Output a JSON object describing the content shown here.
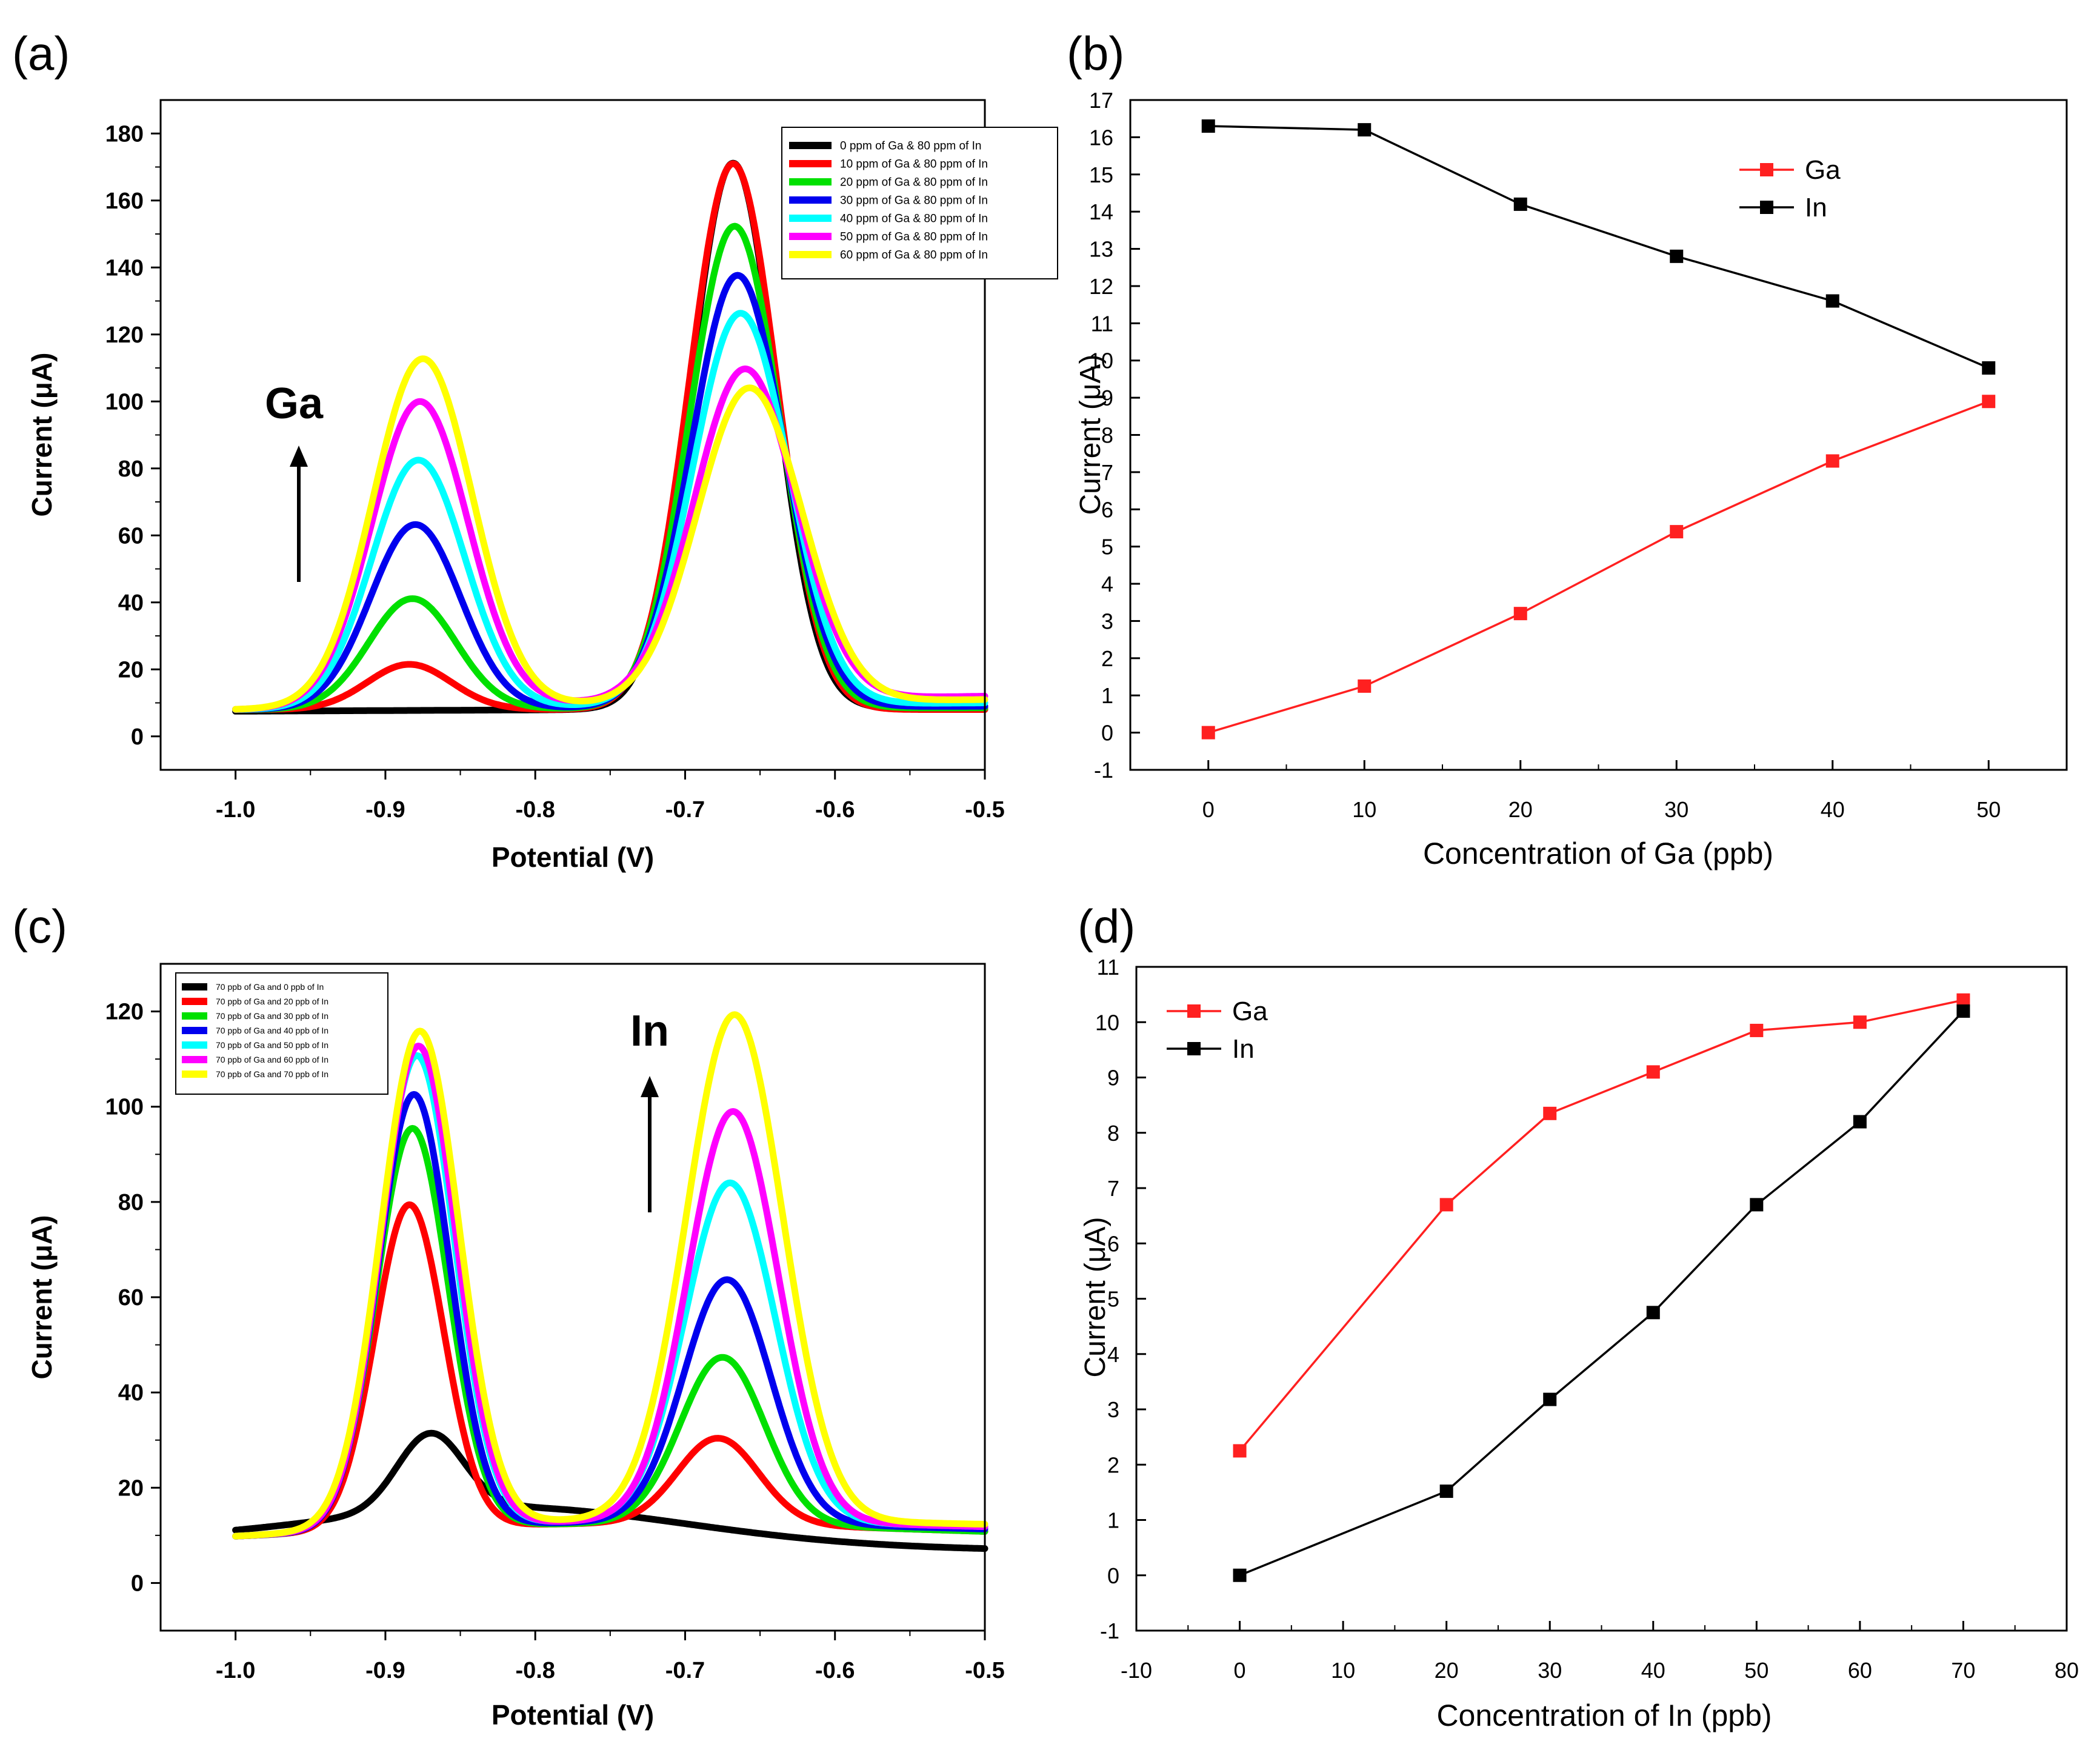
{
  "chart_data": [
    {
      "panel_label": "(a)",
      "type": "line",
      "xlabel": "Potential (V)",
      "ylabel": "Current (μA)",
      "xlim": [
        -1.05,
        -0.5
      ],
      "ylim": [
        -10,
        190
      ],
      "xticks": [
        -1.0,
        -0.9,
        -0.8,
        -0.7,
        -0.6,
        -0.5
      ],
      "xtick_labels": [
        "-1.0",
        "-0.9",
        "-0.8",
        "-0.7",
        "-0.6",
        "-0.5"
      ],
      "yticks": [
        0,
        20,
        40,
        60,
        80,
        100,
        120,
        140,
        160,
        180
      ],
      "ytick_labels": [
        "0",
        "20",
        "40",
        "60",
        "80",
        "100",
        "120",
        "140",
        "160",
        "180"
      ],
      "legend_position": "top-right",
      "annotation": "Ga",
      "series": [
        {
          "name": "0 ppm of Ga & 80 ppm of In",
          "color": "#000000",
          "baseline": {
            "x0": -1.0,
            "y0": 7.5,
            "x1": -0.5,
            "y1": 8.5
          },
          "peaks": [
            {
              "center": -0.668,
              "height": 163,
              "width": 0.028
            }
          ],
          "tail": {
            "amp": 0,
            "center": -0.75,
            "width": 0.35
          }
        },
        {
          "name": "10 ppm of Ga & 80 ppm of In",
          "color": "#ff0000",
          "baseline": {
            "x0": -1.0,
            "y0": 8,
            "x1": -0.5,
            "y1": 8
          },
          "peaks": [
            {
              "center": -0.884,
              "height": 13.5,
              "width": 0.028
            },
            {
              "center": -0.668,
              "height": 163,
              "width": 0.029
            }
          ],
          "tail": {
            "amp": 0,
            "center": -0.75,
            "width": 0.35
          }
        },
        {
          "name": "20 ppm of Ga & 80 ppm of In",
          "color": "#00e000",
          "baseline": {
            "x0": -1.0,
            "y0": 8,
            "x1": -0.5,
            "y1": 8.5
          },
          "peaks": [
            {
              "center": -0.882,
              "height": 33,
              "width": 0.029
            },
            {
              "center": -0.667,
              "height": 144,
              "width": 0.03
            }
          ],
          "tail": {
            "amp": 0,
            "center": -0.75,
            "width": 0.35
          }
        },
        {
          "name": "30 ppm of Ga & 80 ppm of In",
          "color": "#0000ee",
          "baseline": {
            "x0": -1.0,
            "y0": 8,
            "x1": -0.5,
            "y1": 9
          },
          "peaks": [
            {
              "center": -0.88,
              "height": 55,
              "width": 0.03
            },
            {
              "center": -0.665,
              "height": 129,
              "width": 0.031
            }
          ],
          "tail": {
            "amp": 0,
            "center": -0.75,
            "width": 0.35
          }
        },
        {
          "name": "40 ppm of Ga & 80 ppm of In",
          "color": "#00ffff",
          "baseline": {
            "x0": -1.0,
            "y0": 8,
            "x1": -0.5,
            "y1": 10
          },
          "peaks": [
            {
              "center": -0.878,
              "height": 74,
              "width": 0.031
            },
            {
              "center": -0.663,
              "height": 117,
              "width": 0.032
            }
          ],
          "tail": {
            "amp": 0,
            "center": -0.75,
            "width": 0.35
          }
        },
        {
          "name": "50 ppm of Ga & 80 ppm of In",
          "color": "#ff00ff",
          "baseline": {
            "x0": -1.0,
            "y0": 8,
            "x1": -0.5,
            "y1": 12
          },
          "peaks": [
            {
              "center": -0.877,
              "height": 91,
              "width": 0.032
            },
            {
              "center": -0.66,
              "height": 99,
              "width": 0.034
            }
          ],
          "tail": {
            "amp": 0,
            "center": -0.75,
            "width": 0.35
          }
        },
        {
          "name": "60 ppm of Ga & 80 ppm of In",
          "color": "#ffff00",
          "baseline": {
            "x0": -1.0,
            "y0": 8,
            "x1": -0.5,
            "y1": 11
          },
          "peaks": [
            {
              "center": -0.875,
              "height": 104,
              "width": 0.033
            },
            {
              "center": -0.657,
              "height": 94,
              "width": 0.035
            }
          ],
          "tail": {
            "amp": 0,
            "center": -0.75,
            "width": 0.35
          }
        }
      ]
    },
    {
      "panel_label": "(b)",
      "type": "line",
      "xlabel": "Concentration of Ga (ppb)",
      "ylabel": "Current (μA)",
      "xlim": [
        -5,
        55
      ],
      "ylim": [
        -1,
        17
      ],
      "xticks": [
        0,
        10,
        20,
        30,
        40,
        50
      ],
      "xtick_labels": [
        "0",
        "10",
        "20",
        "30",
        "40",
        "50"
      ],
      "yticks": [
        -1,
        0,
        1,
        2,
        3,
        4,
        5,
        6,
        7,
        8,
        9,
        10,
        11,
        12,
        13,
        14,
        15,
        16,
        17
      ],
      "ytick_labels": [
        "-1",
        "0",
        "1",
        "2",
        "3",
        "4",
        "5",
        "6",
        "7",
        "8",
        "9",
        "10",
        "11",
        "12",
        "13",
        "14",
        "15",
        "16",
        "17"
      ],
      "legend_position": "top-right",
      "series": [
        {
          "name": "Ga",
          "color": "#ff2020",
          "x": [
            0,
            10,
            20,
            30,
            40,
            50
          ],
          "y": [
            0.0,
            1.25,
            3.2,
            5.4,
            7.3,
            8.9
          ]
        },
        {
          "name": "In",
          "color": "#000000",
          "x": [
            0,
            10,
            20,
            30,
            40,
            50
          ],
          "y": [
            16.3,
            16.2,
            14.2,
            12.8,
            11.6,
            9.8
          ]
        }
      ]
    },
    {
      "panel_label": "(c)",
      "type": "line",
      "xlabel": "Potential (V)",
      "ylabel": "Current (μA)",
      "xlim": [
        -1.05,
        -0.5
      ],
      "ylim": [
        -10,
        130
      ],
      "xticks": [
        -1.0,
        -0.9,
        -0.8,
        -0.7,
        -0.6,
        -0.5
      ],
      "xtick_labels": [
        "-1.0",
        "-0.9",
        "-0.8",
        "-0.7",
        "-0.6",
        "-0.5"
      ],
      "yticks": [
        0,
        20,
        40,
        60,
        80,
        100,
        120
      ],
      "ytick_labels": [
        "0",
        "20",
        "40",
        "60",
        "80",
        "100",
        "120"
      ],
      "legend_position": "top-left",
      "annotation": "In",
      "series": [
        {
          "name": "70 ppb of Ga and 0 ppb of In",
          "color": "#000000",
          "baseline": {
            "x0": -1.0,
            "y0": 8.5,
            "x1": -0.5,
            "y1": 7
          },
          "peaks": [
            {
              "center": -0.87,
              "height": 16,
              "width": 0.022
            }
          ],
          "tail": {
            "amp": 8,
            "center": -0.82,
            "width": 0.12
          }
        },
        {
          "name": "70 ppb of Ga and 20 ppb of In",
          "color": "#ff0000",
          "baseline": {
            "x0": -1.0,
            "y0": 8,
            "x1": -0.5,
            "y1": 9
          },
          "peaks": [
            {
              "center": -0.884,
              "height": 68,
              "width": 0.023
            },
            {
              "center": -0.678,
              "height": 18,
              "width": 0.027
            }
          ],
          "tail": {
            "amp": 4,
            "center": -0.75,
            "width": 0.2
          }
        },
        {
          "name": "70 ppb of Ga and 30 ppb of In",
          "color": "#00e000",
          "baseline": {
            "x0": -1.0,
            "y0": 8,
            "x1": -0.5,
            "y1": 9
          },
          "peaks": [
            {
              "center": -0.882,
              "height": 84,
              "width": 0.024
            },
            {
              "center": -0.675,
              "height": 35,
              "width": 0.028
            }
          ],
          "tail": {
            "amp": 4,
            "center": -0.75,
            "width": 0.2
          }
        },
        {
          "name": "70 ppb of Ga and 40 ppb of In",
          "color": "#0000ee",
          "baseline": {
            "x0": -1.0,
            "y0": 8,
            "x1": -0.5,
            "y1": 9.5
          },
          "peaks": [
            {
              "center": -0.881,
              "height": 91,
              "width": 0.024
            },
            {
              "center": -0.672,
              "height": 51,
              "width": 0.029
            }
          ],
          "tail": {
            "amp": 4,
            "center": -0.75,
            "width": 0.2
          }
        },
        {
          "name": "70 ppb of Ga and 50 ppb of In",
          "color": "#00ffff",
          "baseline": {
            "x0": -1.0,
            "y0": 8,
            "x1": -0.5,
            "y1": 10
          },
          "peaks": [
            {
              "center": -0.879,
              "height": 99,
              "width": 0.025
            },
            {
              "center": -0.67,
              "height": 71,
              "width": 0.03
            }
          ],
          "tail": {
            "amp": 4,
            "center": -0.75,
            "width": 0.2
          }
        },
        {
          "name": "70 ppb of Ga and 60 ppb of In",
          "color": "#ff00ff",
          "baseline": {
            "x0": -1.0,
            "y0": 8,
            "x1": -0.5,
            "y1": 10
          },
          "peaks": [
            {
              "center": -0.878,
              "height": 101,
              "width": 0.025
            },
            {
              "center": -0.668,
              "height": 86,
              "width": 0.03
            }
          ],
          "tail": {
            "amp": 4,
            "center": -0.75,
            "width": 0.2
          }
        },
        {
          "name": "70 ppb of Ga and 70 ppb of In",
          "color": "#ffff00",
          "baseline": {
            "x0": -1.0,
            "y0": 8,
            "x1": -0.5,
            "y1": 10.5
          },
          "peaks": [
            {
              "center": -0.877,
              "height": 104,
              "width": 0.026
            },
            {
              "center": -0.667,
              "height": 106,
              "width": 0.032
            }
          ],
          "tail": {
            "amp": 4,
            "center": -0.75,
            "width": 0.2
          }
        }
      ]
    },
    {
      "panel_label": "(d)",
      "type": "line",
      "xlabel": "Concentration of In (ppb)",
      "ylabel": "Current (μA)",
      "xlim": [
        -10,
        80
      ],
      "ylim": [
        -1,
        11
      ],
      "xticks": [
        -10,
        0,
        10,
        20,
        30,
        40,
        50,
        60,
        70,
        80
      ],
      "xtick_labels": [
        "-10",
        "0",
        "10",
        "20",
        "30",
        "40",
        "50",
        "60",
        "70",
        "80"
      ],
      "yticks": [
        -1,
        0,
        1,
        2,
        3,
        4,
        5,
        6,
        7,
        8,
        9,
        10,
        11
      ],
      "ytick_labels": [
        "-1",
        "0",
        "1",
        "2",
        "3",
        "4",
        "5",
        "6",
        "7",
        "8",
        "9",
        "10",
        "11"
      ],
      "legend_position": "top-left",
      "series": [
        {
          "name": "Ga",
          "color": "#ff2020",
          "x": [
            0,
            20,
            30,
            40,
            50,
            60,
            70
          ],
          "y": [
            2.25,
            6.7,
            8.35,
            9.1,
            9.85,
            10.0,
            10.4
          ]
        },
        {
          "name": "In",
          "color": "#000000",
          "x": [
            0,
            20,
            30,
            40,
            50,
            60,
            70
          ],
          "y": [
            0.0,
            1.52,
            3.18,
            4.75,
            6.7,
            8.2,
            10.2
          ]
        }
      ]
    }
  ]
}
